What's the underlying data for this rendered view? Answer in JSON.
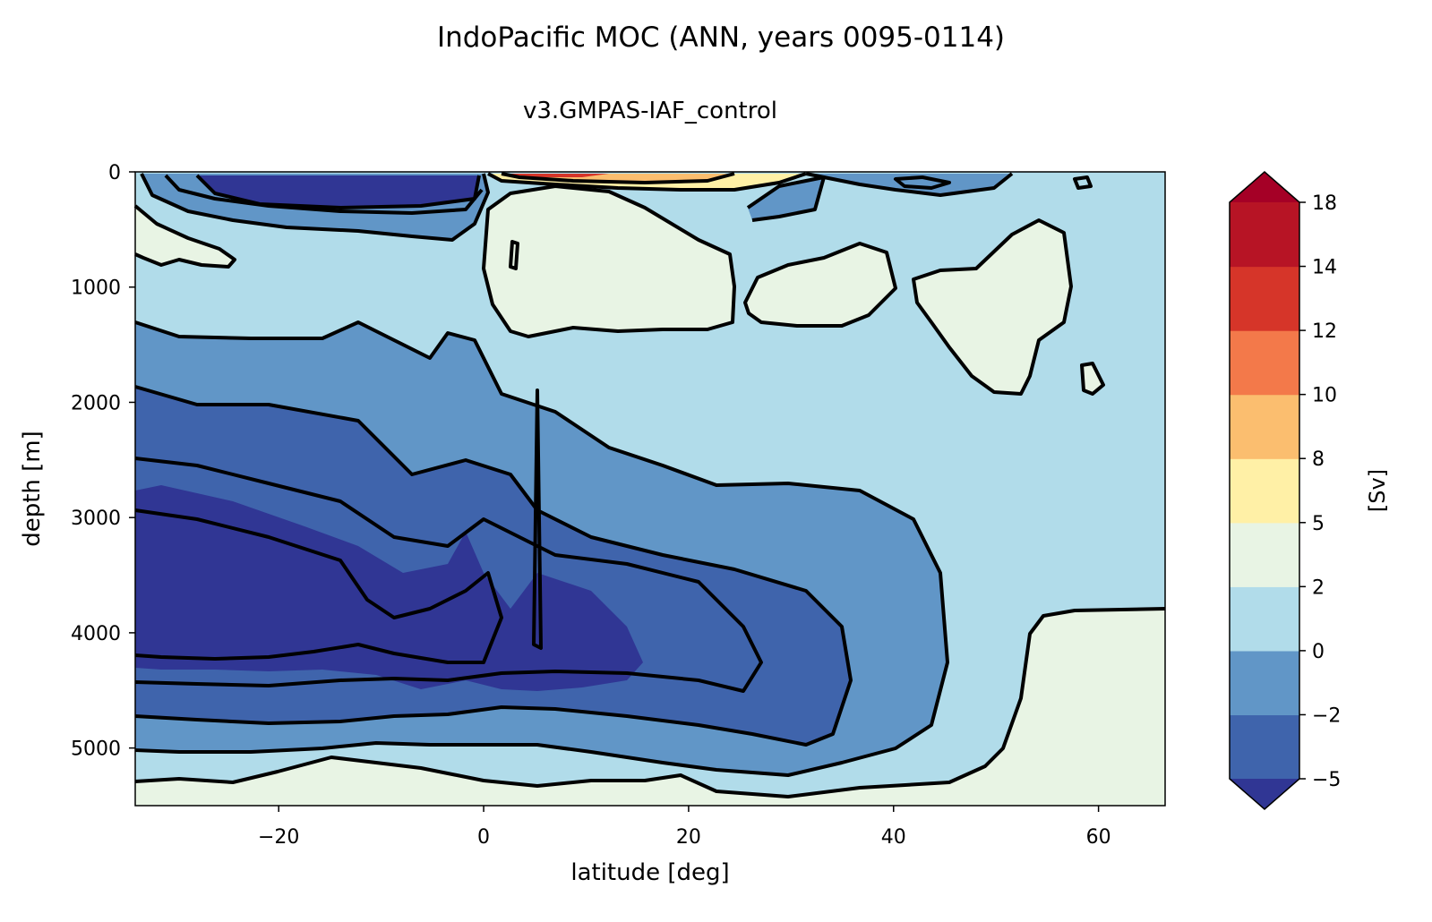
{
  "chart_data": {
    "type": "contourf",
    "title": "IndoPacific MOC (ANN, years 0095-0114)",
    "subtitle": "v3.GMPAS-IAF_control",
    "xlabel": "latitude [deg]",
    "ylabel": "depth [m]",
    "xlim": [
      -34,
      66.5
    ],
    "ylim": [
      5500,
      0
    ],
    "x_ticks": [
      -20,
      0,
      20,
      40,
      60
    ],
    "x_tick_labels": [
      "−20",
      "0",
      "20",
      "40",
      "60"
    ],
    "y_ticks": [
      0,
      1000,
      2000,
      3000,
      4000,
      5000
    ],
    "y_tick_labels": [
      "0",
      "1000",
      "2000",
      "3000",
      "4000",
      "5000"
    ],
    "grid": false,
    "colorbar": {
      "label": "[Sv]",
      "levels": [
        -5,
        -2,
        0,
        2,
        5,
        8,
        10,
        12,
        14,
        18
      ],
      "tick_labels": [
        "−5",
        "−2",
        "0",
        "2",
        "5",
        "8",
        "10",
        "12",
        "14",
        "18"
      ],
      "colors": [
        "#3f64ac",
        "#6196c7",
        "#b1dcea",
        "#e8f4e4",
        "#fff0a6",
        "#fbbe6f",
        "#f3794a",
        "#d63529",
        "#b71425"
      ],
      "under_color": "#303694",
      "over_color": "#a50026",
      "extend": "both"
    },
    "regions": [
      {
        "name": "deep negative cell core",
        "value_sv": "< -5",
        "lat_range": [
          -34,
          17
        ],
        "depth_range": [
          2700,
          4700
        ]
      },
      {
        "name": "upper negative cell",
        "value_sv": "< -5",
        "lat_range": [
          -33,
          0
        ],
        "depth_range": [
          0,
          250
        ]
      },
      {
        "name": "near-surface positive cell",
        "value_sv": "> 8",
        "lat_range": [
          2,
          44
        ],
        "depth_range": [
          0,
          200
        ]
      },
      {
        "name": "bottom positive layer",
        "value_sv": "2 to 5",
        "lat_range": [
          -34,
          66
        ],
        "depth_range": [
          5300,
          5500
        ]
      },
      {
        "name": "northern positive cell",
        "value_sv": "2 to 5",
        "lat_range": [
          51,
          66
        ],
        "depth_range": [
          3800,
          5500
        ]
      }
    ]
  }
}
